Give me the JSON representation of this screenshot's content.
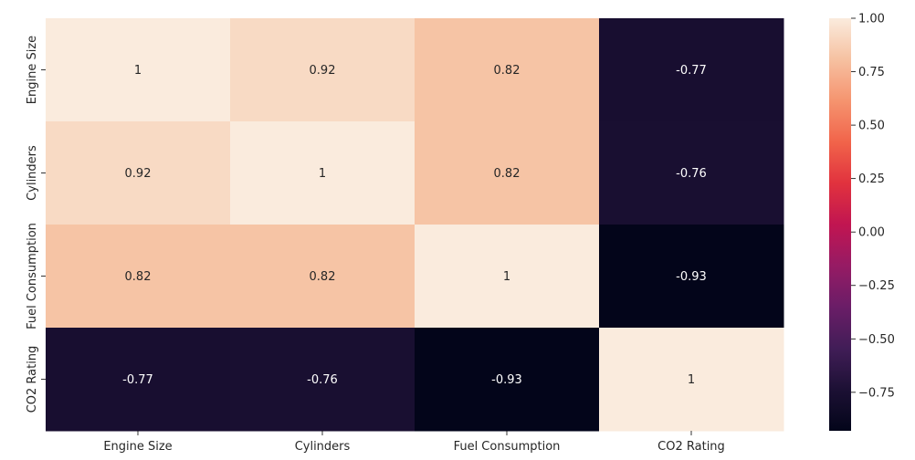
{
  "chart_data": {
    "type": "heatmap",
    "title": "",
    "xlabel": "",
    "ylabel": "",
    "x_categories": [
      "Engine Size",
      "Cylinders",
      "Fuel Consumption",
      "CO2 Rating"
    ],
    "y_categories": [
      "Engine Size",
      "Cylinders",
      "Fuel Consumption",
      "CO2 Rating"
    ],
    "values": [
      [
        1.0,
        0.92,
        0.82,
        -0.77
      ],
      [
        0.92,
        1.0,
        0.82,
        -0.76
      ],
      [
        0.82,
        0.82,
        1.0,
        -0.93
      ],
      [
        -0.77,
        -0.76,
        -0.93,
        1.0
      ]
    ],
    "annotations": [
      [
        "1",
        "0.92",
        "0.82",
        "-0.77"
      ],
      [
        "0.92",
        "1",
        "0.82",
        "-0.76"
      ],
      [
        "0.82",
        "0.82",
        "1",
        "-0.93"
      ],
      [
        "-0.77",
        "-0.76",
        "-0.93",
        "1"
      ]
    ],
    "colorscale": "rocket",
    "colorbar": {
      "vmin": -0.93,
      "vmax": 1.0,
      "ticks": [
        1.0,
        0.75,
        0.5,
        0.25,
        0.0,
        -0.25,
        -0.5,
        -0.75
      ],
      "tick_labels": [
        "1.00",
        "0.75",
        "0.50",
        "0.25",
        "0.00",
        "−0.25",
        "−0.50",
        "−0.75"
      ]
    },
    "grid": false,
    "legend": "colorbar-right"
  }
}
